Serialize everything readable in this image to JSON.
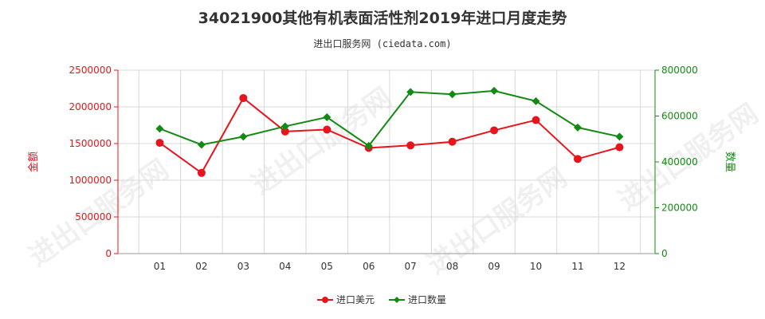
{
  "title": "34021900其他有机表面活性剂2019年进口月度走势",
  "subtitle": "进出口服务网 (ciedata.com)",
  "watermark": "进出口服务网",
  "colors": {
    "amount": "#e8141b",
    "quantity": "#138a13",
    "grid": "#d8d8d8",
    "axis": "#333333"
  },
  "chart_data": {
    "type": "line",
    "categories": [
      "01",
      "02",
      "03",
      "04",
      "05",
      "06",
      "07",
      "08",
      "09",
      "10",
      "11",
      "12"
    ],
    "series": [
      {
        "name": "进口美元",
        "axis": "left",
        "values": [
          1510000,
          1100000,
          2120000,
          1665000,
          1690000,
          1440000,
          1475000,
          1525000,
          1680000,
          1820000,
          1290000,
          1450000
        ]
      },
      {
        "name": "进口数量",
        "axis": "right",
        "values": [
          545000,
          475000,
          510000,
          555000,
          595000,
          470000,
          705000,
          695000,
          710000,
          665000,
          550000,
          510000
        ]
      }
    ],
    "left_axis": {
      "label": "金额",
      "ylim": [
        0,
        2500000
      ],
      "ticks": [
        "0",
        "500000",
        "1000000",
        "1500000",
        "2000000",
        "2500000"
      ]
    },
    "right_axis": {
      "label": "数量",
      "ylim": [
        0,
        800000
      ],
      "ticks": [
        "0",
        "200000",
        "400000",
        "600000",
        "800000"
      ]
    },
    "grid": true,
    "legend_position": "bottom"
  }
}
